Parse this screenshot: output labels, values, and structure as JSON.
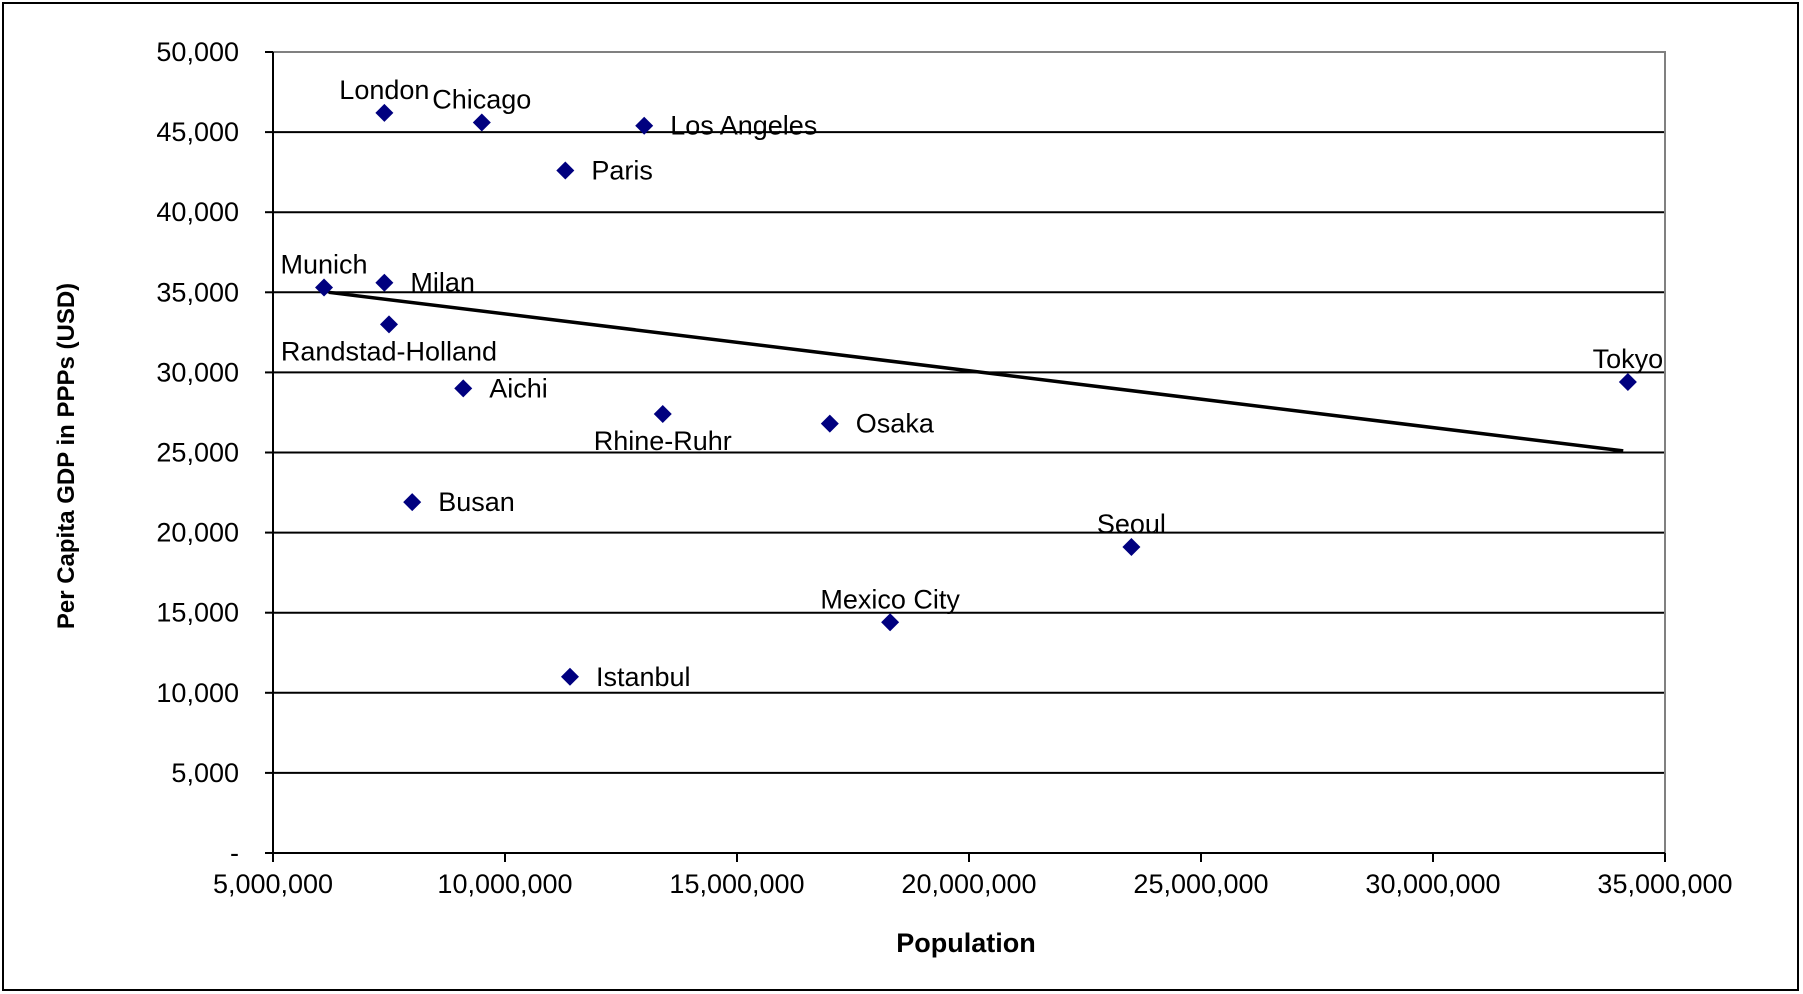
{
  "chart_data": {
    "type": "scatter",
    "title": "",
    "xlabel": "Population",
    "ylabel": "Per Capita GDP in PPPs (USD)",
    "xlim": [
      5000000,
      35000000
    ],
    "ylim": [
      0,
      50000
    ],
    "x_ticks": [
      5000000,
      10000000,
      15000000,
      20000000,
      25000000,
      30000000,
      35000000
    ],
    "x_tick_labels": [
      "5,000,000",
      "10,000,000",
      "15,000,000",
      "20,000,000",
      "25,000,000",
      "30,000,000",
      "35,000,000"
    ],
    "y_ticks": [
      0,
      5000,
      10000,
      15000,
      20000,
      25000,
      30000,
      35000,
      40000,
      45000,
      50000
    ],
    "y_tick_labels": [
      "-",
      "5,000",
      "10,000",
      "15,000",
      "20,000",
      "25,000",
      "30,000",
      "35,000",
      "40,000",
      "45,000",
      "50,000"
    ],
    "grid": "horizontal",
    "legend": "none",
    "colors": {
      "marker": "#00007f",
      "trendline": "#000000",
      "gridline": "#000000",
      "plot_border": "#808080"
    },
    "points": [
      {
        "label": "London",
        "x": 7400000,
        "y": 46200,
        "label_pos": "above"
      },
      {
        "label": "Chicago",
        "x": 9500000,
        "y": 45600,
        "label_pos": "above"
      },
      {
        "label": "Los Angeles",
        "x": 13000000,
        "y": 45400,
        "label_pos": "right"
      },
      {
        "label": "Paris",
        "x": 11300000,
        "y": 42600,
        "label_pos": "right"
      },
      {
        "label": "Munich",
        "x": 6100000,
        "y": 35300,
        "label_pos": "above"
      },
      {
        "label": "Milan",
        "x": 7400000,
        "y": 35600,
        "label_pos": "right"
      },
      {
        "label": "Randstad-Holland",
        "x": 7500000,
        "y": 33000,
        "label_pos": "below"
      },
      {
        "label": "Aichi",
        "x": 9100000,
        "y": 29000,
        "label_pos": "right"
      },
      {
        "label": "Rhine-Ruhr",
        "x": 13400000,
        "y": 27400,
        "label_pos": "below"
      },
      {
        "label": "Osaka",
        "x": 17000000,
        "y": 26800,
        "label_pos": "right"
      },
      {
        "label": "Tokyo",
        "x": 34200000,
        "y": 29400,
        "label_pos": "above"
      },
      {
        "label": "Busan",
        "x": 8000000,
        "y": 21900,
        "label_pos": "right"
      },
      {
        "label": "Seoul",
        "x": 23500000,
        "y": 19100,
        "label_pos": "above"
      },
      {
        "label": "Mexico City",
        "x": 18300000,
        "y": 14400,
        "label_pos": "above"
      },
      {
        "label": "Istanbul",
        "x": 11400000,
        "y": 11000,
        "label_pos": "right"
      }
    ],
    "trendline": {
      "x": [
        6200000,
        34100000
      ],
      "y": [
        35000,
        25100
      ]
    }
  }
}
